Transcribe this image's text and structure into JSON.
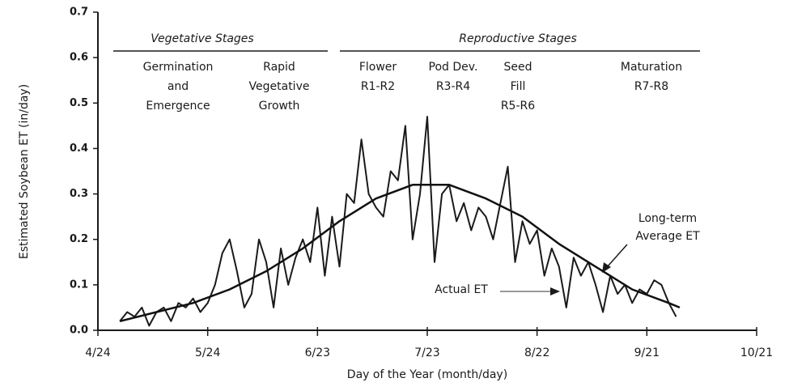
{
  "chart_data": {
    "type": "line",
    "xlabel": "Day of the Year (month/day)",
    "ylabel": "Estimated Soybean ET (in/day)",
    "xlim": [
      114,
      294
    ],
    "xticks": [
      {
        "value": 114,
        "label": "4/24"
      },
      {
        "value": 144,
        "label": "5/24"
      },
      {
        "value": 174,
        "label": "6/23"
      },
      {
        "value": 204,
        "label": "7/23"
      },
      {
        "value": 234,
        "label": "8/22"
      },
      {
        "value": 264,
        "label": "9/21"
      },
      {
        "value": 294,
        "label": "10/21"
      }
    ],
    "ylim": [
      0,
      0.7
    ],
    "yticks": [
      {
        "value": 0,
        "label": "0.0"
      },
      0.1,
      0.2,
      0.3,
      0.4,
      0.5,
      0.6,
      0.7
    ],
    "series": [
      {
        "name": "Actual ET",
        "color": "#1a1a1a",
        "x": [
          120,
          122,
          124,
          126,
          128,
          130,
          132,
          134,
          136,
          138,
          140,
          142,
          144,
          146,
          148,
          150,
          152,
          154,
          156,
          158,
          160,
          162,
          164,
          166,
          168,
          170,
          172,
          174,
          176,
          178,
          180,
          182,
          184,
          186,
          188,
          190,
          192,
          194,
          196,
          198,
          200,
          202,
          204,
          206,
          208,
          210,
          212,
          214,
          216,
          218,
          220,
          222,
          224,
          226,
          228,
          230,
          232,
          234,
          236,
          238,
          240,
          242,
          244,
          246,
          248,
          250,
          252,
          254,
          256,
          258,
          260,
          262,
          264,
          266,
          268,
          270,
          272
        ],
        "values": [
          0.02,
          0.04,
          0.03,
          0.05,
          0.01,
          0.04,
          0.05,
          0.02,
          0.06,
          0.05,
          0.07,
          0.04,
          0.06,
          0.1,
          0.17,
          0.2,
          0.13,
          0.05,
          0.08,
          0.2,
          0.15,
          0.05,
          0.18,
          0.1,
          0.16,
          0.2,
          0.15,
          0.27,
          0.12,
          0.25,
          0.14,
          0.3,
          0.28,
          0.42,
          0.3,
          0.27,
          0.25,
          0.35,
          0.33,
          0.45,
          0.2,
          0.3,
          0.47,
          0.15,
          0.3,
          0.32,
          0.24,
          0.28,
          0.22,
          0.27,
          0.25,
          0.2,
          0.28,
          0.36,
          0.15,
          0.24,
          0.19,
          0.22,
          0.12,
          0.18,
          0.14,
          0.05,
          0.16,
          0.12,
          0.15,
          0.1,
          0.04,
          0.12,
          0.08,
          0.1,
          0.06,
          0.09,
          0.08,
          0.11,
          0.1,
          0.06,
          0.03
        ]
      },
      {
        "name": "Long-term Average ET",
        "color": "#111111",
        "x": [
          120,
          130,
          140,
          150,
          160,
          170,
          180,
          190,
          200,
          210,
          220,
          230,
          240,
          250,
          260,
          270,
          273
        ],
        "values": [
          0.02,
          0.04,
          0.06,
          0.09,
          0.13,
          0.18,
          0.24,
          0.29,
          0.32,
          0.32,
          0.29,
          0.25,
          0.19,
          0.14,
          0.09,
          0.06,
          0.05
        ]
      }
    ],
    "stages": [
      {
        "label": "Vegetative Stages",
        "substages": [
          [
            "Germination",
            "and",
            "Emergence"
          ],
          [
            "Rapid",
            "Vegetative",
            "Growth"
          ]
        ]
      },
      {
        "label": "Reproductive  Stages",
        "substages": [
          [
            "Flower",
            "R1-R2"
          ],
          [
            "Pod Dev.",
            "R3-R4"
          ],
          [
            "Seed",
            "Fill",
            "R5-R6"
          ],
          [
            "Maturation",
            "R7-R8"
          ]
        ]
      }
    ],
    "annotations": [
      [
        "Long-term",
        "Average ET"
      ],
      [
        "Actual ET"
      ]
    ]
  }
}
